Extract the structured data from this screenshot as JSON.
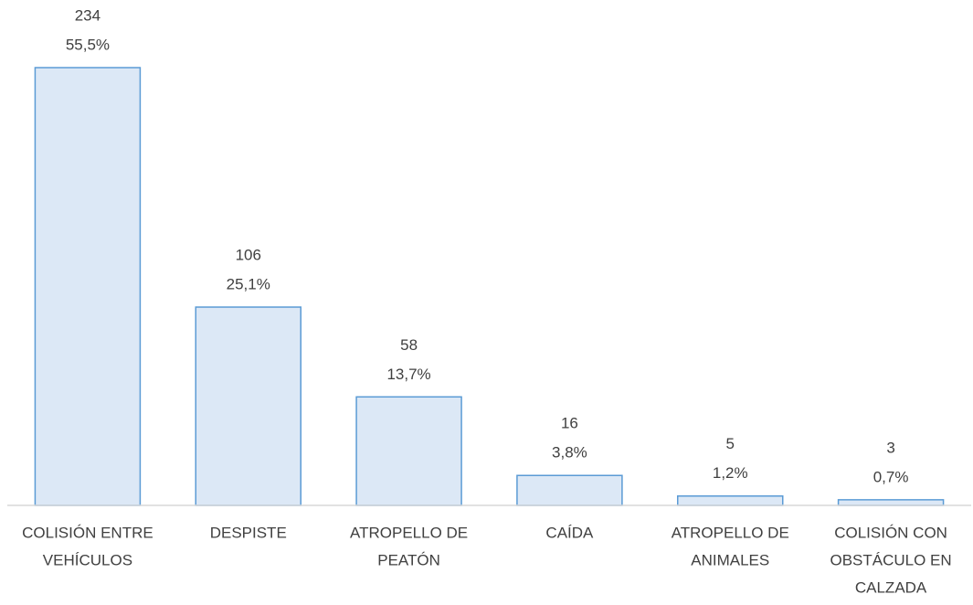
{
  "chart_data": {
    "type": "bar",
    "categories": [
      [
        "COLISIÓN ENTRE",
        "VEHÍCULOS"
      ],
      [
        "DESPISTE"
      ],
      [
        "ATROPELLO DE",
        "PEATÓN"
      ],
      [
        "CAÍDA"
      ],
      [
        "ATROPELLO DE",
        "ANIMALES"
      ],
      [
        "COLISIÓN CON",
        "OBSTÁCULO EN",
        "CALZADA"
      ]
    ],
    "values": [
      234,
      106,
      58,
      16,
      5,
      3
    ],
    "shares": [
      55.5,
      25.1,
      13.7,
      3.8,
      1.2,
      0.7
    ],
    "share_labels": [
      "55,5%",
      "25,1%",
      "13,7%",
      "3,8%",
      "1,2%",
      "0,7%"
    ],
    "color": "#dce8f6",
    "edge_color": "#5b9bd5"
  }
}
